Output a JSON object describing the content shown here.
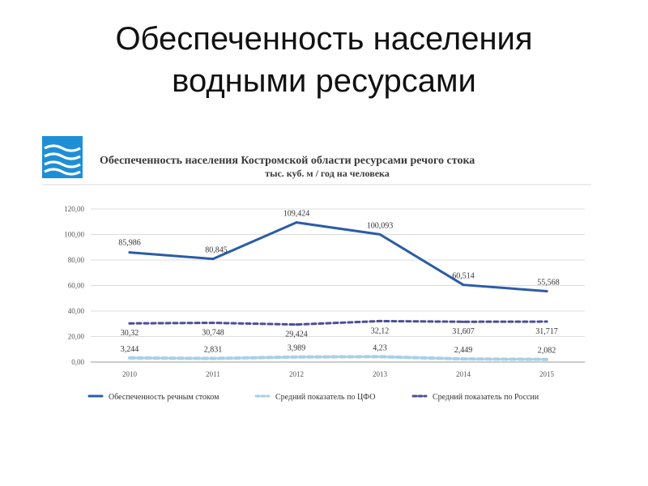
{
  "slide": {
    "title_line1": "Обеспеченность населения",
    "title_line2": "водными ресурсами"
  },
  "logo": {
    "name": "water-waves-logo"
  },
  "chart_data": {
    "type": "line",
    "title": "Обеспеченность населения Костромской области ресурсами речого стока",
    "subtitle": "тыс. куб. м / год на человека",
    "categories": [
      "2010",
      "2011",
      "2012",
      "2013",
      "2014",
      "2015"
    ],
    "ylim": [
      0,
      120
    ],
    "yticks": [
      "0,00",
      "20,00",
      "40,00",
      "60,00",
      "80,00",
      "100,00",
      "120,00"
    ],
    "grid": true,
    "legend_position": "bottom",
    "series": [
      {
        "name": "Обеспеченность речным стоком",
        "values": [
          85.986,
          80.845,
          109.424,
          100.093,
          60.514,
          55.568
        ],
        "labels": [
          "85,986",
          "80,845",
          "109,424",
          "100,093",
          "60,514",
          "55,568"
        ],
        "color": "#2a5ca8",
        "style": "solid"
      },
      {
        "name": "Средний показатель по ЦФО",
        "values": [
          3.244,
          2.831,
          3.989,
          4.23,
          2.449,
          2.082
        ],
        "labels": [
          "3,244",
          "2,831",
          "3,989",
          "4,23",
          "2,449",
          "2,082"
        ],
        "color": "#a9cfe6",
        "style": "dashed"
      },
      {
        "name": "Средний показатель по России",
        "values": [
          30.32,
          30.748,
          29.424,
          32.12,
          31.607,
          31.717
        ],
        "labels": [
          "30,32",
          "30,748",
          "29,424",
          "32,12",
          "31,607",
          "31,717"
        ],
        "color": "#4a4f9a",
        "style": "dashed"
      }
    ]
  }
}
